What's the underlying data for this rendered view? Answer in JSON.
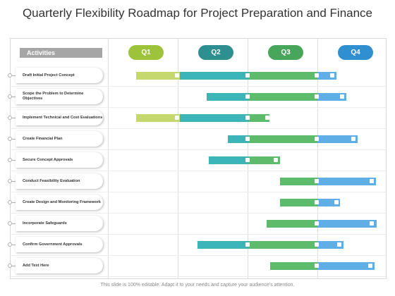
{
  "title": "Quarterly Flexibility Roadmap for Project Preparation and Finance",
  "header": {
    "activities_label": "Activities",
    "quarters": [
      {
        "label": "Q1",
        "color": "#9dc33b"
      },
      {
        "label": "Q2",
        "color": "#2e8f91"
      },
      {
        "label": "Q3",
        "color": "#48a65a"
      },
      {
        "label": "Q4",
        "color": "#2f8fd1"
      }
    ]
  },
  "colors": {
    "q1_bar": "#c5d86d",
    "q2_bar": "#3bb5b8",
    "q3_bar": "#5cbc6c",
    "q4_bar": "#5faee6"
  },
  "activities": [
    "Draft Initial Project Concept",
    "Scope the Problem to Determine Objectives",
    "Implement Technical and Cost Evaluations",
    "Create Financial Plan",
    "Secure Concept Approvals",
    "Conduct Feasibility Evaluation",
    "Create Design and Monitoring Framework",
    "Incorporate Safeguards",
    "Confirm Government Approvals",
    "Add Text Here"
  ],
  "footer": "This slide is 100% editable. Adapt it to your needs and capture your audience's attention."
}
